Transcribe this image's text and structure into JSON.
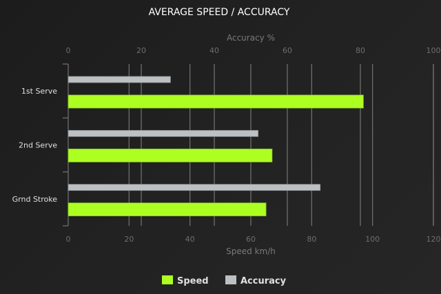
{
  "chart_data": {
    "type": "bar",
    "orientation": "horizontal",
    "title": "AVERAGE SPEED / ACCURACY",
    "categories": [
      "1st Serve",
      "2nd Serve",
      "Grnd Stroke"
    ],
    "series": [
      {
        "name": "Speed",
        "axis": "bottom",
        "color": "#adff22",
        "values": [
          97,
          67,
          65
        ]
      },
      {
        "name": "Accuracy",
        "axis": "top",
        "color": "#bcc0c3",
        "values": [
          28,
          52,
          69
        ]
      }
    ],
    "axes": {
      "bottom": {
        "label": "Speed km/h",
        "range": [
          0,
          120
        ],
        "ticks": [
          0,
          20,
          40,
          60,
          80,
          100,
          120
        ]
      },
      "top": {
        "label": "Accuracy %",
        "range": [
          0,
          100
        ],
        "ticks": [
          0,
          20,
          40,
          60,
          80,
          100
        ]
      }
    },
    "grid": true,
    "legend": "bottom"
  }
}
